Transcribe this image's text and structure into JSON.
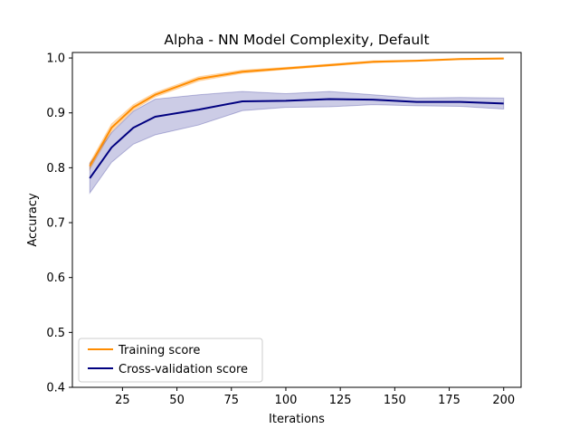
{
  "chart_data": {
    "type": "line",
    "title": "Alpha - NN Model Complexity, Default",
    "xlabel": "Iterations",
    "ylabel": "Accuracy",
    "xlim": [
      2,
      208
    ],
    "ylim": [
      0.4,
      1.01
    ],
    "xticks": [
      25,
      50,
      75,
      100,
      125,
      150,
      175,
      200
    ],
    "xtick_labels": [
      "25",
      "50",
      "75",
      "100",
      "125",
      "150",
      "175",
      "200"
    ],
    "yticks": [
      0.4,
      0.5,
      0.6,
      0.7,
      0.8,
      0.9,
      1.0
    ],
    "ytick_labels": [
      "0.4",
      "0.5",
      "0.6",
      "0.7",
      "0.8",
      "0.9",
      "1.0"
    ],
    "grid": false,
    "legend_location": "lower-left",
    "x": [
      10,
      20,
      30,
      40,
      60,
      80,
      100,
      120,
      140,
      160,
      180,
      200
    ],
    "series": [
      {
        "name": "Training score",
        "color": "#ff8c00",
        "values": [
          0.803,
          0.873,
          0.91,
          0.933,
          0.962,
          0.975,
          0.981,
          0.987,
          0.993,
          0.995,
          0.998,
          0.999
        ],
        "band_lower": [
          0.797,
          0.866,
          0.905,
          0.929,
          0.958,
          0.972,
          0.979,
          0.985,
          0.991,
          0.994,
          0.997,
          0.998
        ],
        "band_upper": [
          0.809,
          0.88,
          0.915,
          0.937,
          0.966,
          0.978,
          0.983,
          0.989,
          0.995,
          0.996,
          0.999,
          1.0
        ]
      },
      {
        "name": "Cross-validation score",
        "color": "#000080",
        "values": [
          0.781,
          0.837,
          0.873,
          0.893,
          0.906,
          0.921,
          0.922,
          0.925,
          0.924,
          0.92,
          0.92,
          0.917
        ],
        "band_lower": [
          0.754,
          0.81,
          0.843,
          0.86,
          0.878,
          0.904,
          0.91,
          0.911,
          0.915,
          0.913,
          0.912,
          0.907
        ],
        "band_upper": [
          0.808,
          0.864,
          0.903,
          0.925,
          0.933,
          0.939,
          0.935,
          0.939,
          0.933,
          0.927,
          0.928,
          0.927
        ]
      }
    ]
  }
}
